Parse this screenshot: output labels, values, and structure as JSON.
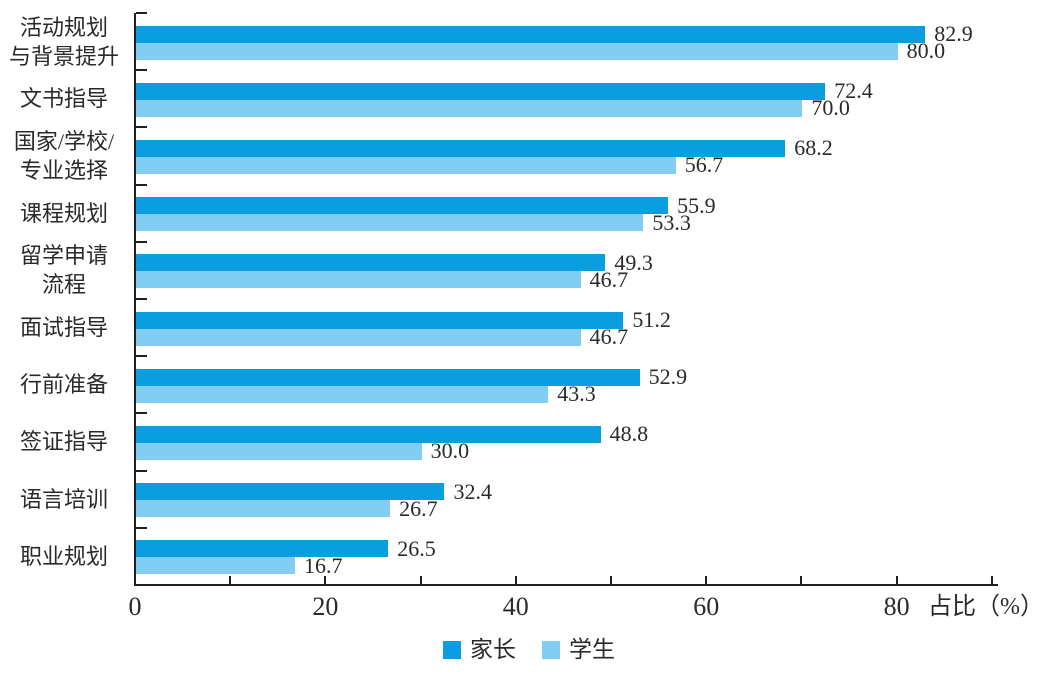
{
  "chart_data": {
    "type": "bar",
    "orientation": "horizontal",
    "title": "",
    "xlabel": "占比（%）",
    "ylabel": "",
    "x_tick_values": [
      0,
      20,
      40,
      60,
      80
    ],
    "minor_tick_step": 10,
    "xlim": [
      0,
      90.5
    ],
    "grid": false,
    "legend_position": "bottom",
    "categories": [
      [
        "活动规划",
        "与背景提升"
      ],
      [
        "文书指导"
      ],
      [
        "国家/学校/",
        "专业选择"
      ],
      [
        "课程规划"
      ],
      [
        "留学申请",
        "流程"
      ],
      [
        "面试指导"
      ],
      [
        "行前准备"
      ],
      [
        "签证指导"
      ],
      [
        "语言培训"
      ],
      [
        "职业规划"
      ]
    ],
    "series": [
      {
        "name": "家长",
        "color": "#0a9de0",
        "values": [
          82.9,
          72.4,
          68.2,
          55.9,
          49.3,
          51.2,
          52.9,
          48.8,
          32.4,
          26.5
        ]
      },
      {
        "name": "学生",
        "color": "#82cef2",
        "values": [
          80.0,
          70.0,
          56.7,
          53.3,
          46.7,
          46.7,
          43.3,
          30.0,
          26.7,
          16.7
        ]
      }
    ],
    "value_label_decimals": 1
  },
  "colors": {
    "axis": "#231f20",
    "text": "#2b2a28"
  }
}
